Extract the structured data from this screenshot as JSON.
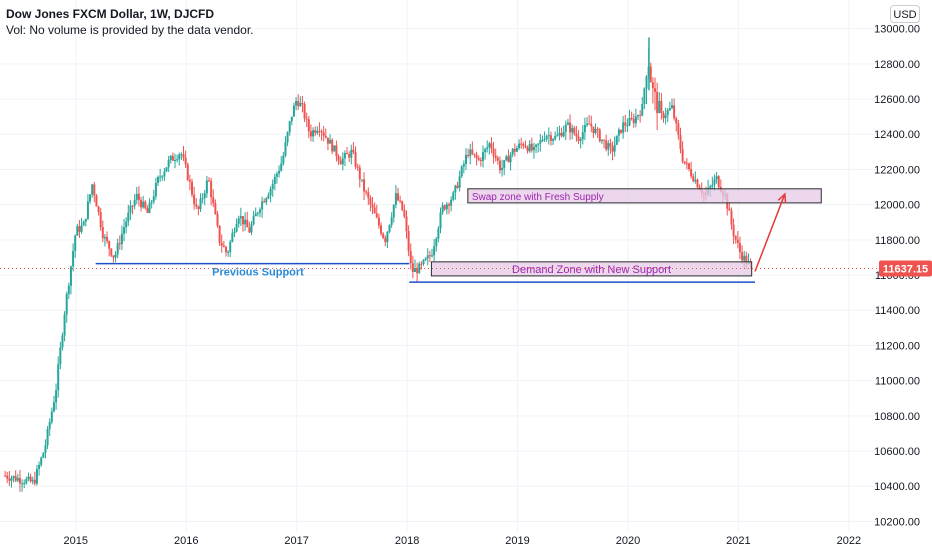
{
  "header": {
    "title": "Dow Jones FXCM Dollar, 1W, DJCFD",
    "volume_note": "Vol: No volume is provided by the data vendor.",
    "currency_button": "USD"
  },
  "colors": {
    "up": "#26a69a",
    "down": "#ef5350",
    "grid": "#f0f3fa",
    "support_line": "#1e4fc7",
    "support_text": "#2a8ad6",
    "zone_fill": "#e6c9e6",
    "zone_border": "#2b2b2b",
    "zone_text": "#9c27b0",
    "arrow": "#e53935",
    "price_badge": "#ef5350",
    "price_line": "#ef5350"
  },
  "chart_data": {
    "type": "candlestick",
    "title": "Dow Jones FXCM Dollar, 1W, DJCFD",
    "x_ticks": [
      "2015",
      "2016",
      "2017",
      "2018",
      "2019",
      "2020",
      "2021",
      "2022"
    ],
    "y_ticks": [
      "10200.00",
      "10400.00",
      "10600.00",
      "10800.00",
      "11000.00",
      "11200.00",
      "11400.00",
      "11600.00",
      "11800.00",
      "12000.00",
      "12200.00",
      "12400.00",
      "12600.00",
      "12800.00",
      "13000.00"
    ],
    "ylim": [
      10140,
      13140
    ],
    "xlim": [
      2014.35,
      2022.3
    ],
    "last_price": 11637.15,
    "last_price_label": "11637.15",
    "grid": true,
    "price_path": [
      [
        2014.36,
        10460
      ],
      [
        2014.5,
        10440
      ],
      [
        2014.62,
        10420
      ],
      [
        2014.72,
        10620
      ],
      [
        2014.82,
        10950
      ],
      [
        2014.9,
        11400
      ],
      [
        2015.0,
        11850
      ],
      [
        2015.07,
        11880
      ],
      [
        2015.15,
        12120
      ],
      [
        2015.25,
        11820
      ],
      [
        2015.35,
        11700
      ],
      [
        2015.45,
        11900
      ],
      [
        2015.55,
        12050
      ],
      [
        2015.65,
        11950
      ],
      [
        2015.75,
        12150
      ],
      [
        2015.85,
        12250
      ],
      [
        2015.95,
        12300
      ],
      [
        2016.02,
        12150
      ],
      [
        2016.1,
        11950
      ],
      [
        2016.2,
        12150
      ],
      [
        2016.3,
        11800
      ],
      [
        2016.37,
        11720
      ],
      [
        2016.47,
        11950
      ],
      [
        2016.57,
        11850
      ],
      [
        2016.67,
        12000
      ],
      [
        2016.77,
        12100
      ],
      [
        2016.87,
        12250
      ],
      [
        2016.95,
        12500
      ],
      [
        2017.0,
        12600
      ],
      [
        2017.05,
        12550
      ],
      [
        2017.12,
        12400
      ],
      [
        2017.2,
        12450
      ],
      [
        2017.3,
        12350
      ],
      [
        2017.4,
        12250
      ],
      [
        2017.5,
        12300
      ],
      [
        2017.6,
        12100
      ],
      [
        2017.7,
        11950
      ],
      [
        2017.8,
        11800
      ],
      [
        2017.9,
        12050
      ],
      [
        2017.97,
        11950
      ],
      [
        2018.04,
        11620
      ],
      [
        2018.12,
        11640
      ],
      [
        2018.22,
        11720
      ],
      [
        2018.32,
        11980
      ],
      [
        2018.42,
        12050
      ],
      [
        2018.55,
        12300
      ],
      [
        2018.65,
        12250
      ],
      [
        2018.75,
        12350
      ],
      [
        2018.85,
        12200
      ],
      [
        2018.95,
        12300
      ],
      [
        2019.05,
        12350
      ],
      [
        2019.15,
        12300
      ],
      [
        2019.25,
        12400
      ],
      [
        2019.35,
        12380
      ],
      [
        2019.45,
        12450
      ],
      [
        2019.55,
        12380
      ],
      [
        2019.65,
        12460
      ],
      [
        2019.75,
        12380
      ],
      [
        2019.85,
        12300
      ],
      [
        2019.95,
        12450
      ],
      [
        2020.05,
        12480
      ],
      [
        2020.13,
        12550
      ],
      [
        2020.18,
        12850
      ],
      [
        2020.22,
        12650
      ],
      [
        2020.3,
        12500
      ],
      [
        2020.4,
        12550
      ],
      [
        2020.5,
        12250
      ],
      [
        2020.6,
        12150
      ],
      [
        2020.7,
        12050
      ],
      [
        2020.8,
        12150
      ],
      [
        2020.88,
        12050
      ],
      [
        2020.95,
        11850
      ],
      [
        2021.02,
        11720
      ],
      [
        2021.08,
        11670
      ],
      [
        2021.12,
        11640
      ]
    ],
    "annotations": {
      "previous_support": {
        "label": "Previous Support",
        "price": 11665,
        "x_start": 2015.18,
        "x_end": 2018.02,
        "label_x": 2016.65
      },
      "low_line": {
        "price": 11560,
        "x_start": 2018.02,
        "x_end": 2021.15
      },
      "demand_zone": {
        "label": "Demand Zone with New Support",
        "price_low": 11595,
        "price_high": 11675,
        "x_start": 2018.22,
        "x_end": 2021.12
      },
      "swap_zone": {
        "label": "Swap zone with Fresh Supply",
        "price_low": 12010,
        "price_high": 12090,
        "x_start": 2018.55,
        "x_end": 2021.75
      },
      "projection_arrow": {
        "from": [
          2021.15,
          11620
        ],
        "to": [
          2021.42,
          12060
        ]
      }
    }
  }
}
